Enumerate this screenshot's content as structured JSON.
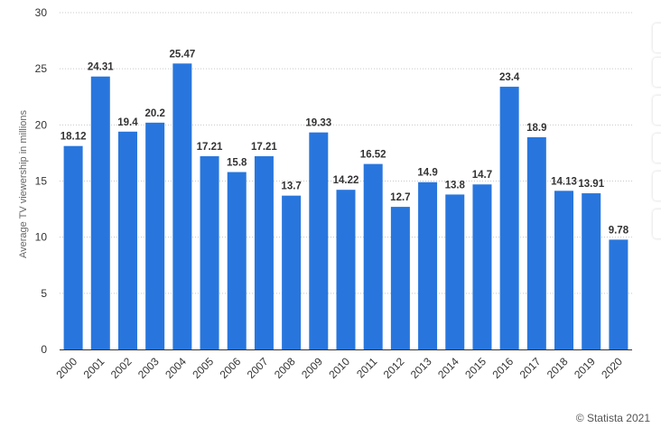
{
  "chart_data": {
    "type": "bar",
    "title": "",
    "xlabel": "",
    "ylabel": "Average TV viewership in millions",
    "ylim": [
      0,
      30
    ],
    "yticks": [
      0,
      5,
      10,
      15,
      20,
      25,
      30
    ],
    "grid": true,
    "categories": [
      "2000",
      "2001",
      "2002",
      "2003",
      "2004",
      "2005",
      "2006",
      "2007",
      "2008",
      "2009",
      "2010",
      "2011",
      "2012",
      "2013",
      "2014",
      "2015",
      "2016",
      "2017",
      "2018",
      "2019",
      "2020"
    ],
    "values": [
      18.12,
      24.31,
      19.4,
      20.2,
      25.47,
      17.21,
      15.8,
      17.21,
      13.7,
      19.33,
      14.22,
      16.52,
      12.7,
      14.9,
      13.8,
      14.7,
      23.4,
      18.9,
      14.13,
      13.91,
      9.78
    ],
    "value_labels": [
      "18.12",
      "24.31",
      "19.4",
      "20.2",
      "25.47",
      "17.21",
      "15.8",
      "17.21",
      "13.7",
      "19.33",
      "14.22",
      "16.52",
      "12.7",
      "14.9",
      "13.8",
      "14.7",
      "23.4",
      "18.9",
      "14.13",
      "13.91",
      "9.78"
    ],
    "bar_color": "#2876dd"
  },
  "credit": "© Statista 2021",
  "toolbar": {
    "button_count": 6
  }
}
